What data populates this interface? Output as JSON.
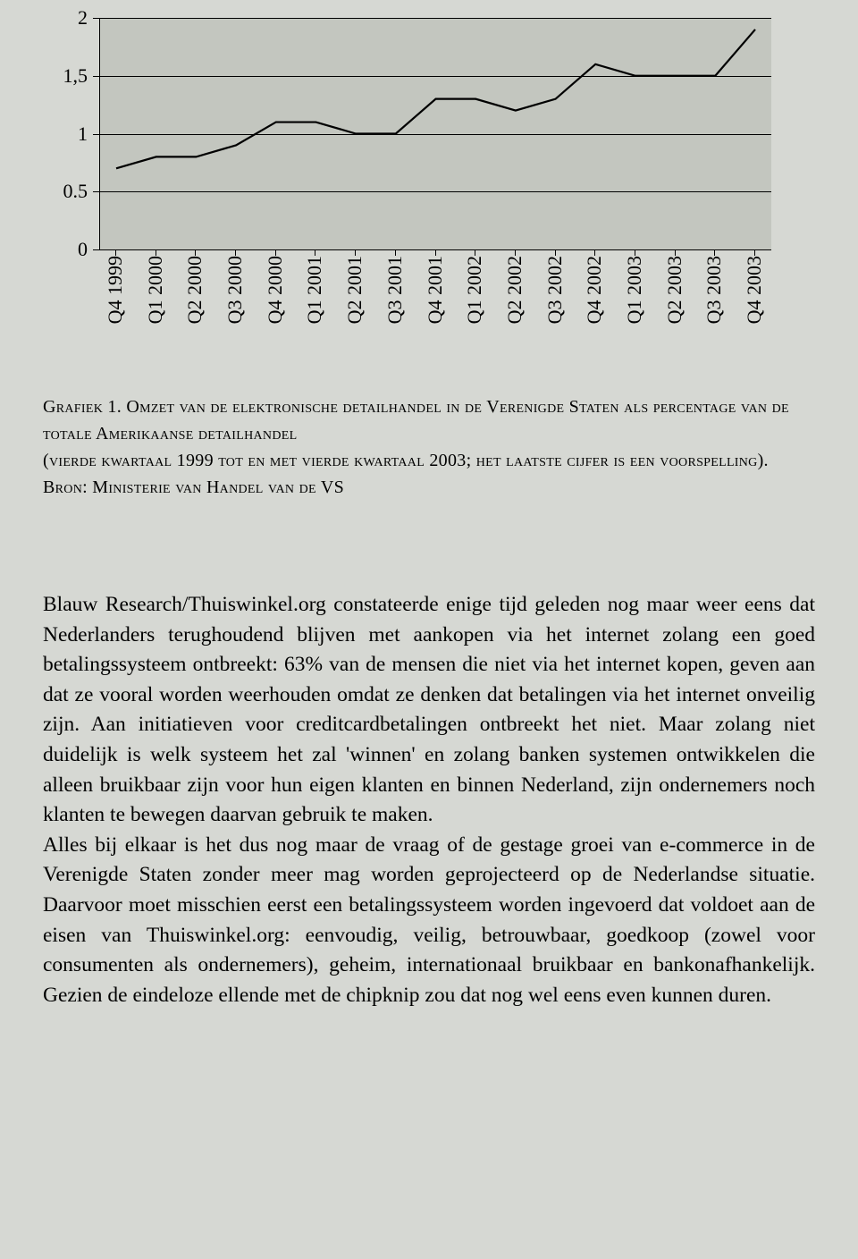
{
  "chart": {
    "type": "line",
    "background_color": "#c3c6bf",
    "page_background": "#d6d8d3",
    "line_color": "#000000",
    "line_width": 2.2,
    "grid_color": "#000000",
    "grid_width": 1,
    "axis_color": "#000000",
    "ylim": [
      0,
      2
    ],
    "yticks": [
      0,
      0.5,
      1,
      1.5,
      2
    ],
    "ytick_labels": [
      "0",
      "0.5",
      "1",
      "1,5",
      "2"
    ],
    "gridlines_at": [
      0.5,
      1,
      1.5,
      2
    ],
    "label_fontsize": 22,
    "categories": [
      "Q4 1999",
      "Q1 2000",
      "Q2 2000",
      "Q3 2000",
      "Q4 2000",
      "Q1 2001",
      "Q2 2001",
      "Q3 2001",
      "Q4 2001",
      "Q1 2002",
      "Q2 2002",
      "Q3 2002",
      "Q4 2002",
      "Q1 2003",
      "Q2 2003",
      "Q3 2003",
      "Q4 2003"
    ],
    "values": [
      0.7,
      0.8,
      0.8,
      0.9,
      1.1,
      1.1,
      1.0,
      1.0,
      1.3,
      1.3,
      1.2,
      1.3,
      1.6,
      1.5,
      1.5,
      1.5,
      1.9
    ]
  },
  "caption": {
    "label": "Grafiek 1.",
    "line1": "Omzet van de elektronische detailhandel in de Verenigde Staten als percentage van de totale Amerikaanse detailhandel",
    "line2_a": "(vierde kwartaal",
    "year1": " 1999 ",
    "line2_b": "tot en met vierde kwartaal",
    "year2": " 2003; ",
    "line2_c": "het laatste cijfer is een voorspelling).",
    "source_label": " Bron: Ministerie van Handel van de",
    "source_country": " VS"
  },
  "body": {
    "p1": "Blauw Research/Thuiswinkel.org constateerde enige tijd geleden nog maar weer eens dat Nederlanders terughoudend blijven met aankopen via het internet zolang een goed betalingssysteem ontbreekt: 63% van de mensen die niet via het internet kopen, geven aan dat ze vooral worden weerhouden omdat ze denken dat betalingen via het internet onveilig zijn. Aan initiatieven voor creditcard­betalingen ontbreekt het niet. Maar zolang niet duidelijk is welk systeem het zal 'winnen' en zolang banken systemen ontwikkelen die alleen bruikbaar zijn voor hun eigen klanten en binnen Nederland, zijn ondernemers noch klanten te bewegen daarvan gebruik te maken.",
    "p2": "Alles bij elkaar is het dus nog maar de vraag of de gestage groei van e-commerce in de Verenigde Staten zonder meer mag worden geprojecteerd op de Neder­landse situatie. Daarvoor moet misschien eerst een betalingssysteem worden ingevoerd dat voldoet aan de eisen van Thuiswinkel.org: eenvoudig, veilig, betrouwbaar, goedkoop (zowel voor consumenten als ondernemers), geheim, internationaal bruikbaar en bankonafhankelijk. Gezien de eindeloze ellende met de chipknip zou dat nog wel eens even kunnen duren."
  }
}
